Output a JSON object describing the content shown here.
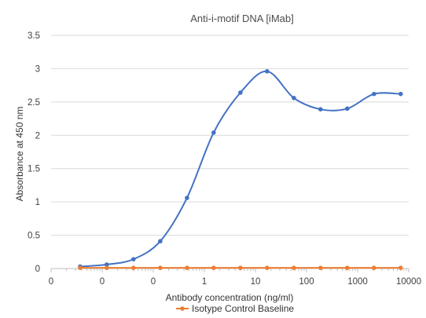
{
  "chart_data": {
    "type": "scatter",
    "title": "Anti-i-motif DNA [iMab]",
    "xlabel": "Antibody concentration (ng/ml)",
    "ylabel": "Absorbance at 450 nm",
    "x_scale": "log",
    "x_ticks": [
      "0",
      "0",
      "0",
      "1",
      "10",
      "100",
      "1000",
      "10000"
    ],
    "x_tick_values": [
      0.001,
      0.01,
      0.1,
      1,
      10,
      100,
      1000,
      10000
    ],
    "xlim": [
      0.001,
      10000
    ],
    "y_ticks": [
      "0",
      "0.5",
      "1",
      "1.5",
      "2",
      "2.5",
      "3",
      "3.5"
    ],
    "ylim": [
      0,
      3.5
    ],
    "grid": "horizontal",
    "legend_position": "bottom",
    "series": [
      {
        "name": "",
        "color": "#4472c4",
        "smooth": true,
        "x": [
          0.0037,
          0.0123,
          0.041,
          0.137,
          0.457,
          1.52,
          5.08,
          16.9,
          56.4,
          188,
          627,
          2090,
          6970
        ],
        "y": [
          0.03,
          0.06,
          0.14,
          0.41,
          1.06,
          2.04,
          2.64,
          2.96,
          2.56,
          2.39,
          2.4,
          2.62,
          2.62
        ]
      },
      {
        "name": "Isotype Control Baseline",
        "color": "#ed7d31",
        "smooth": false,
        "x": [
          0.0037,
          0.0123,
          0.041,
          0.137,
          0.457,
          1.52,
          5.08,
          16.9,
          56.4,
          188,
          627,
          2090,
          6970
        ],
        "y": [
          0.01,
          0.01,
          0.01,
          0.01,
          0.01,
          0.01,
          0.01,
          0.01,
          0.01,
          0.01,
          0.01,
          0.01,
          0.01
        ]
      }
    ]
  }
}
